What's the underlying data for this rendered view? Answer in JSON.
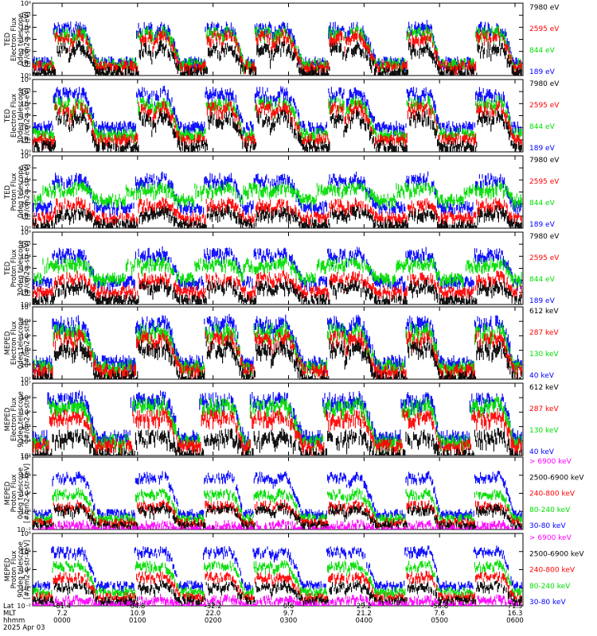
{
  "chart_data": [
    {
      "type": "line",
      "ylabel": [
        "TED",
        "Electron Flux",
        "0deg telescope",
        "[#/cm2-s-str-eV]"
      ],
      "ylog": true,
      "ylim_exp": [
        0,
        6
      ],
      "ytick_labels": [
        "10⁰",
        "10¹",
        "10²",
        "10³",
        "10⁴",
        "10⁵",
        "10⁶"
      ],
      "legend": [
        {
          "name": "7980 eV",
          "color": "#000000"
        },
        {
          "name": "2595 eV",
          "color": "#ff0000"
        },
        {
          "name": "844 eV",
          "color": "#00dd00"
        },
        {
          "name": "189 eV",
          "color": "#0000ff"
        }
      ],
      "pass_windows": [
        [
          0.06,
          0.13
        ],
        [
          0.23,
          0.3
        ],
        [
          0.37,
          0.43
        ],
        [
          0.47,
          0.55
        ],
        [
          0.62,
          0.7
        ],
        [
          0.78,
          0.83
        ],
        [
          0.92,
          0.98
        ]
      ],
      "series": [
        {
          "name": "189 eV",
          "level": 1.3,
          "peak": 4.3,
          "width": 0.018
        },
        {
          "name": "844 eV",
          "level": 1.2,
          "peak": 3.9,
          "width": 0.017
        },
        {
          "name": "2595 eV",
          "level": 1.0,
          "peak": 3.6,
          "width": 0.015
        },
        {
          "name": "7980 eV",
          "level": 0.5,
          "peak": 2.6,
          "width": 0.013
        }
      ]
    },
    {
      "type": "line",
      "ylabel": [
        "TED",
        "Electron Flux",
        "30deg telescope",
        "[#/cm2-s-str-eV]"
      ],
      "ylog": true,
      "ylim_exp": [
        0,
        6
      ],
      "ytick_labels": [
        "10⁰",
        "10¹",
        "10²",
        "10³",
        "10⁴",
        "10⁵",
        "10⁶"
      ],
      "legend": [
        {
          "name": "7980 eV",
          "color": "#000000"
        },
        {
          "name": "2595 eV",
          "color": "#ff0000"
        },
        {
          "name": "844 eV",
          "color": "#00dd00"
        },
        {
          "name": "189 eV",
          "color": "#0000ff"
        }
      ],
      "pass_windows": [
        [
          0.06,
          0.13
        ],
        [
          0.23,
          0.3
        ],
        [
          0.37,
          0.43
        ],
        [
          0.47,
          0.55
        ],
        [
          0.62,
          0.7
        ],
        [
          0.78,
          0.83
        ],
        [
          0.92,
          0.98
        ]
      ],
      "series": [
        {
          "name": "189 eV",
          "level": 2.3,
          "peak": 5.2,
          "width": 0.018
        },
        {
          "name": "844 eV",
          "level": 1.7,
          "peak": 4.4,
          "width": 0.017
        },
        {
          "name": "2595 eV",
          "level": 1.3,
          "peak": 4.0,
          "width": 0.015
        },
        {
          "name": "7980 eV",
          "level": 0.7,
          "peak": 3.2,
          "width": 0.013
        }
      ]
    },
    {
      "type": "line",
      "ylabel": [
        "TED",
        "Proton Flux",
        "0deg telescope",
        "[#/cm2-s-str-eV]"
      ],
      "ylog": true,
      "ylim_exp": [
        0,
        6
      ],
      "ytick_labels": [
        "10⁰",
        "10¹",
        "10²",
        "10³",
        "10⁴",
        "10⁵",
        "10⁶"
      ],
      "legend": [
        {
          "name": "7980 eV",
          "color": "#000000"
        },
        {
          "name": "2595 eV",
          "color": "#ff0000"
        },
        {
          "name": "844 eV",
          "color": "#00dd00"
        },
        {
          "name": "189 eV",
          "color": "#0000ff"
        }
      ],
      "pass_windows": [
        [
          0.06,
          0.13
        ],
        [
          0.23,
          0.3
        ],
        [
          0.37,
          0.43
        ],
        [
          0.47,
          0.55
        ],
        [
          0.62,
          0.7
        ],
        [
          0.78,
          0.83
        ],
        [
          0.92,
          0.98
        ]
      ],
      "series": [
        {
          "name": "189 eV",
          "level": 2.0,
          "peak": 4.4,
          "width": 0.02
        },
        {
          "name": "844 eV",
          "level": 2.6,
          "peak": 3.6,
          "width": 0.04
        },
        {
          "name": "2595 eV",
          "level": 1.1,
          "peak": 2.3,
          "width": 0.016
        },
        {
          "name": "7980 eV",
          "level": 0.5,
          "peak": 1.6,
          "width": 0.014
        }
      ]
    },
    {
      "type": "line",
      "ylabel": [
        "TED",
        "Proton Flux",
        "30deg telescope",
        "[#/cm2-s-str-eV]"
      ],
      "ylog": true,
      "ylim_exp": [
        0,
        6
      ],
      "ytick_labels": [
        "10⁰",
        "10¹",
        "10²",
        "10³",
        "10⁴",
        "10⁵",
        "10⁶"
      ],
      "legend": [
        {
          "name": "7980 eV",
          "color": "#000000"
        },
        {
          "name": "2595 eV",
          "color": "#ff0000"
        },
        {
          "name": "844 eV",
          "color": "#00dd00"
        },
        {
          "name": "189 eV",
          "color": "#0000ff"
        }
      ],
      "pass_windows": [
        [
          0.06,
          0.13
        ],
        [
          0.23,
          0.3
        ],
        [
          0.37,
          0.43
        ],
        [
          0.47,
          0.55
        ],
        [
          0.62,
          0.7
        ],
        [
          0.78,
          0.83
        ],
        [
          0.92,
          0.98
        ]
      ],
      "series": [
        {
          "name": "189 eV",
          "level": 2.1,
          "peak": 4.5,
          "width": 0.02
        },
        {
          "name": "844 eV",
          "level": 2.4,
          "peak": 3.7,
          "width": 0.04
        },
        {
          "name": "2595 eV",
          "level": 1.3,
          "peak": 2.5,
          "width": 0.016
        },
        {
          "name": "7980 eV",
          "level": 0.6,
          "peak": 1.8,
          "width": 0.014
        }
      ]
    },
    {
      "type": "line",
      "ylabel": [
        "MEPED",
        "Electron Flux",
        "0deg telescope",
        "[#/cm2-s-str]"
      ],
      "ylog": true,
      "ylim_exp": [
        2,
        7
      ],
      "ytick_labels": [
        "10²",
        "10³",
        "10⁴",
        "10⁵",
        "10⁶",
        "10⁷"
      ],
      "legend": [
        {
          "name": "612 keV",
          "color": "#000000"
        },
        {
          "name": "287 keV",
          "color": "#ff0000"
        },
        {
          "name": "130 keV",
          "color": "#00dd00"
        },
        {
          "name": "40 keV",
          "color": "#0000ff"
        }
      ],
      "pass_windows": [
        [
          0.06,
          0.13
        ],
        [
          0.23,
          0.3
        ],
        [
          0.37,
          0.43
        ],
        [
          0.47,
          0.55
        ],
        [
          0.62,
          0.7
        ],
        [
          0.78,
          0.83
        ],
        [
          0.92,
          0.98
        ]
      ],
      "series": [
        {
          "name": "40 keV",
          "level": 3.4,
          "peak": 6.2,
          "width": 0.02
        },
        {
          "name": "130 keV",
          "level": 3.1,
          "peak": 5.7,
          "width": 0.019
        },
        {
          "name": "287 keV",
          "level": 2.8,
          "peak": 5.2,
          "width": 0.018
        },
        {
          "name": "612 keV",
          "level": 2.3,
          "peak": 4.5,
          "width": 0.016
        }
      ]
    },
    {
      "type": "line",
      "ylabel": [
        "MEPED",
        "Electron Flux",
        "90deg telescope",
        "[#/cm2-s-str]"
      ],
      "ylog": true,
      "ylim_exp": [
        2,
        7
      ],
      "ytick_labels": [
        "10²",
        "10³",
        "10⁴",
        "10⁵",
        "10⁶",
        "10⁷"
      ],
      "legend": [
        {
          "name": "612 keV",
          "color": "#000000"
        },
        {
          "name": "287 keV",
          "color": "#ff0000"
        },
        {
          "name": "130 keV",
          "color": "#00dd00"
        },
        {
          "name": "40 keV",
          "color": "#0000ff"
        }
      ],
      "pass_windows": [
        [
          0.06,
          0.13
        ],
        [
          0.23,
          0.3
        ],
        [
          0.37,
          0.43
        ],
        [
          0.47,
          0.55
        ],
        [
          0.62,
          0.7
        ],
        [
          0.78,
          0.83
        ],
        [
          0.92,
          0.98
        ]
      ],
      "series": [
        {
          "name": "40 keV",
          "level": 3.5,
          "peak": 6.2,
          "width": 0.03
        },
        {
          "name": "130 keV",
          "level": 3.2,
          "peak": 5.8,
          "width": 0.028
        },
        {
          "name": "287 keV",
          "level": 2.9,
          "peak": 5.0,
          "width": 0.026
        },
        {
          "name": "612 keV",
          "level": 2.3,
          "peak": 3.6,
          "width": 0.02
        }
      ]
    },
    {
      "type": "line",
      "ylabel": [
        "MEPED",
        "Proton Flux",
        "0deg telescope",
        "[#/cm2-s-str-keV]"
      ],
      "ylog": true,
      "ylim_exp": [
        -2,
        6
      ],
      "ytick_labels": [
        "10⁻²",
        "10⁰",
        "10²",
        "10⁴",
        "10⁶"
      ],
      "legend": [
        {
          "name": "> 6900 keV",
          "color": "#ff00ff"
        },
        {
          "name": "2500-6900 keV",
          "color": "#000000"
        },
        {
          "name": "240-800 keV",
          "color": "#ff0000"
        },
        {
          "name": "80-240 keV",
          "color": "#00dd00"
        },
        {
          "name": "30-80 keV",
          "color": "#0000ff"
        }
      ],
      "pass_windows": [
        [
          0.06,
          0.13
        ],
        [
          0.23,
          0.3
        ],
        [
          0.37,
          0.43
        ],
        [
          0.47,
          0.55
        ],
        [
          0.62,
          0.7
        ],
        [
          0.78,
          0.83
        ],
        [
          0.92,
          0.98
        ]
      ],
      "series": [
        {
          "name": "30-80 keV",
          "level": 0.0,
          "peak": 4.2,
          "width": 0.02
        },
        {
          "name": "80-240 keV",
          "level": -0.5,
          "peak": 2.3,
          "width": 0.02
        },
        {
          "name": "240-800 keV",
          "level": -1.0,
          "peak": 1.0,
          "width": 0.018
        },
        {
          "name": "2500-6900 keV",
          "level": -1.3,
          "peak": 0.6,
          "width": 0.016
        },
        {
          "name": "> 6900 keV",
          "level": -1.8,
          "peak": -1.2,
          "width": 0.014
        }
      ]
    },
    {
      "type": "line",
      "ylabel": [
        "MEPED",
        "Proton Flux",
        "90deg telescope",
        "[#/cm2-s-str-keV]"
      ],
      "ylog": true,
      "ylim_exp": [
        -2,
        6
      ],
      "ytick_labels": [
        "10⁻²",
        "10⁰",
        "10²",
        "10⁴",
        "10⁶"
      ],
      "legend": [
        {
          "name": "> 6900 keV",
          "color": "#ff00ff"
        },
        {
          "name": "2500-6900 keV",
          "color": "#000000"
        },
        {
          "name": "240-800 keV",
          "color": "#ff0000"
        },
        {
          "name": "80-240 keV",
          "color": "#00dd00"
        },
        {
          "name": "30-80 keV",
          "color": "#0000ff"
        }
      ],
      "pass_windows": [
        [
          0.06,
          0.13
        ],
        [
          0.23,
          0.3
        ],
        [
          0.37,
          0.43
        ],
        [
          0.47,
          0.55
        ],
        [
          0.62,
          0.7
        ],
        [
          0.78,
          0.83
        ],
        [
          0.92,
          0.98
        ]
      ],
      "series": [
        {
          "name": "30-80 keV",
          "level": 0.5,
          "peak": 4.4,
          "width": 0.022
        },
        {
          "name": "80-240 keV",
          "level": -0.2,
          "peak": 2.8,
          "width": 0.02
        },
        {
          "name": "240-800 keV",
          "level": -0.8,
          "peak": 1.6,
          "width": 0.018
        },
        {
          "name": "2500-6900 keV",
          "level": -1.2,
          "peak": 0.5,
          "width": 0.016
        },
        {
          "name": "> 6900 keV",
          "level": -1.7,
          "peak": -1.0,
          "width": 0.014
        }
      ]
    }
  ],
  "xaxis": {
    "row_labels": [
      "Lat",
      "MLT",
      "hhmm",
      "2025 Apr 03"
    ],
    "ticks": [
      {
        "lat": "-81.4",
        "mlt": "7.2",
        "hhmm": "0000"
      },
      {
        "lat": "64.8",
        "mlt": "10.9",
        "hhmm": "0100"
      },
      {
        "lat": "-32.2",
        "mlt": "22.0",
        "hhmm": "0200"
      },
      {
        "lat": "0.6",
        "mlt": "9.7",
        "hhmm": "0300"
      },
      {
        "lat": "29.2",
        "mlt": "21.2",
        "hhmm": "0400"
      },
      {
        "lat": "-56.8",
        "mlt": "7.6",
        "hhmm": "0500"
      },
      {
        "lat": "71.5",
        "mlt": "16.3",
        "hhmm": "0600"
      }
    ]
  }
}
